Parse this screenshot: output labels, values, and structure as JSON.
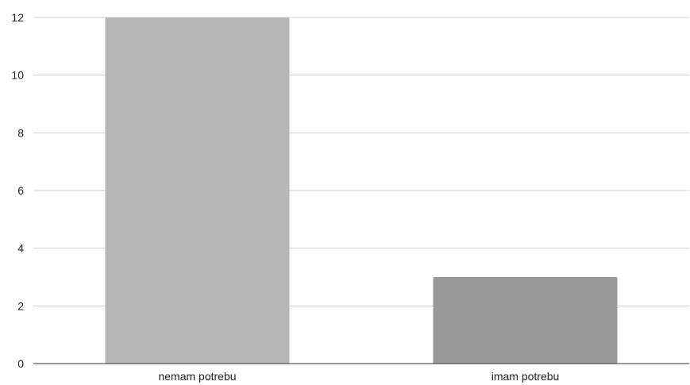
{
  "chart_data": {
    "type": "bar",
    "categories": [
      "nemam potrebu",
      "imam potrebu"
    ],
    "values": [
      12,
      3
    ],
    "colors": [
      "#b7b7b7",
      "#999999"
    ],
    "title": "",
    "xlabel": "",
    "ylabel": "",
    "ylim": [
      0,
      12
    ],
    "yticks": [
      0,
      2,
      4,
      6,
      8,
      10,
      12
    ],
    "grid": true,
    "gridline_color": "#d0d0d0",
    "legend": "none"
  }
}
